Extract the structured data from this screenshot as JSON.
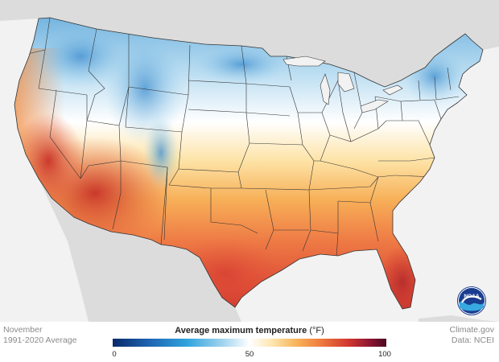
{
  "caption_left": {
    "month": "November",
    "period": "1991-2020 Average"
  },
  "legend": {
    "title": "Average maximum temperature",
    "unit": "(°F)",
    "ticks": [
      "0",
      "50",
      "100"
    ],
    "range": [
      0,
      100
    ]
  },
  "caption_right": {
    "source": "Climate.gov",
    "data": "Data: NCEI"
  },
  "logo": {
    "text": "NOAA"
  },
  "colors": {
    "background": "#f2f2f2",
    "other_land": "#dcdcdc",
    "state_border": "#333333",
    "cold": "#1f67b4",
    "cool": "#9fd3ee",
    "mild": "#ffffff",
    "warm": "#f8b45a",
    "hot": "#d2382e"
  }
}
